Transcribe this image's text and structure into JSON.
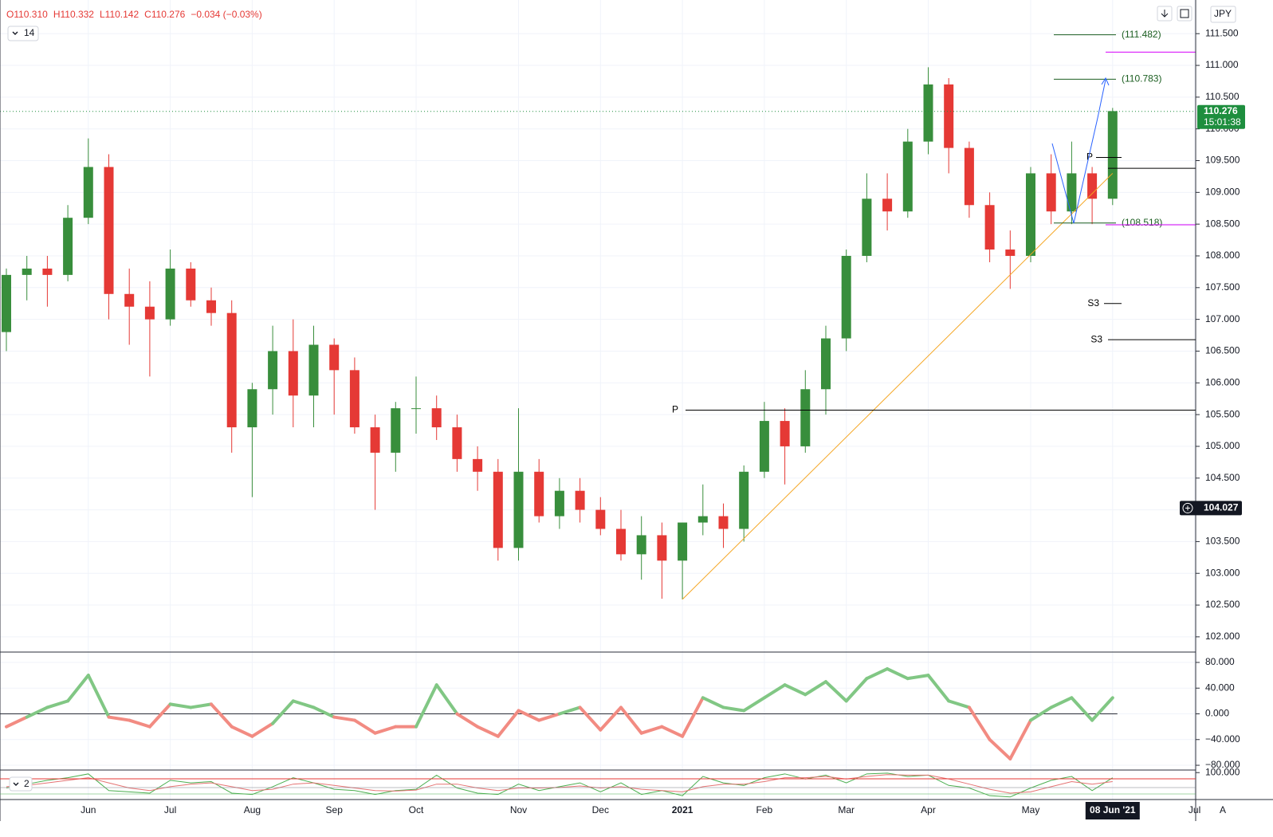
{
  "header": {
    "open": "O110.310",
    "high": "H110.332",
    "low": "L110.142",
    "close": "C110.276",
    "change": "−0.034 (−0.03%)",
    "interval": "14",
    "currency": "JPY",
    "auto": "A",
    "pane_label": "2"
  },
  "chart_data": [
    {
      "type": "candlestick",
      "categories": [
        null,
        null,
        null,
        null,
        "Jun",
        null,
        null,
        null,
        "Jul",
        null,
        null,
        null,
        "Aug",
        null,
        null,
        null,
        "Sep",
        null,
        null,
        null,
        "Oct",
        null,
        null,
        null,
        null,
        "Nov",
        null,
        null,
        null,
        "Dec",
        null,
        null,
        null,
        "2021",
        null,
        null,
        null,
        "Feb",
        null,
        null,
        null,
        "Mar",
        null,
        null,
        null,
        "Apr",
        null,
        null,
        null,
        null,
        "May",
        null,
        null,
        null,
        "08 Jun '21",
        null,
        null,
        null,
        "Jul"
      ],
      "open": [
        106.8,
        107.7,
        107.8,
        107.7,
        108.6,
        109.4,
        107.4,
        107.2,
        107.0,
        107.8,
        107.3,
        107.1,
        105.3,
        105.9,
        106.5,
        105.8,
        106.6,
        106.2,
        105.3,
        104.9,
        105.6,
        105.6,
        105.3,
        104.8,
        104.6,
        103.4,
        104.6,
        103.9,
        104.3,
        104.0,
        103.7,
        103.3,
        103.6,
        103.2,
        103.8,
        103.9,
        103.7,
        104.6,
        105.4,
        105.0,
        105.9,
        106.7,
        108.0,
        108.9,
        108.7,
        109.8,
        110.7,
        109.7,
        108.8,
        108.1,
        108.0,
        109.3,
        108.7,
        109.3,
        108.9,
        null,
        null,
        null,
        null
      ],
      "high": [
        107.8,
        108.0,
        108.0,
        108.8,
        109.85,
        109.6,
        107.8,
        107.6,
        108.1,
        107.9,
        107.5,
        107.3,
        106.0,
        106.9,
        107.0,
        106.9,
        106.7,
        106.4,
        105.5,
        105.7,
        106.1,
        105.8,
        105.5,
        105.0,
        104.8,
        105.6,
        104.8,
        104.5,
        104.5,
        104.2,
        104.0,
        103.9,
        103.8,
        103.8,
        104.4,
        104.1,
        104.7,
        105.7,
        105.6,
        106.2,
        106.9,
        108.1,
        109.3,
        109.3,
        110.0,
        110.97,
        110.8,
        109.8,
        109.0,
        108.4,
        109.4,
        109.6,
        109.8,
        109.4,
        110.33,
        null,
        null,
        null,
        null
      ],
      "low": [
        106.5,
        107.3,
        107.2,
        107.6,
        108.5,
        107.0,
        106.6,
        106.1,
        106.9,
        107.2,
        106.9,
        104.9,
        104.2,
        105.5,
        105.3,
        105.3,
        105.5,
        105.2,
        104.0,
        104.6,
        105.2,
        105.1,
        104.6,
        104.3,
        103.2,
        103.2,
        103.8,
        103.7,
        103.8,
        103.6,
        103.2,
        102.9,
        102.6,
        102.59,
        103.6,
        103.4,
        103.5,
        104.5,
        104.4,
        104.9,
        105.5,
        106.5,
        107.9,
        108.4,
        108.6,
        109.6,
        109.3,
        108.6,
        107.9,
        107.48,
        107.9,
        108.5,
        108.5,
        108.5,
        108.8,
        null,
        null,
        null,
        null
      ],
      "close": [
        107.7,
        107.8,
        107.7,
        108.6,
        109.4,
        107.4,
        107.2,
        107.0,
        107.8,
        107.3,
        107.1,
        105.3,
        105.9,
        106.5,
        105.8,
        106.6,
        106.2,
        105.3,
        104.9,
        105.6,
        105.6,
        105.3,
        104.8,
        104.6,
        103.4,
        104.6,
        103.9,
        104.3,
        104.0,
        103.7,
        103.3,
        103.6,
        103.2,
        103.8,
        103.9,
        103.7,
        104.6,
        105.4,
        105.0,
        105.9,
        106.7,
        108.0,
        108.9,
        108.7,
        109.8,
        110.7,
        109.7,
        108.8,
        108.1,
        108.0,
        109.3,
        108.7,
        109.3,
        108.9,
        110.28,
        null,
        null,
        null,
        null
      ],
      "up_color": "#388e3c",
      "down_color": "#e53935",
      "ylim": [
        101.76,
        112.03
      ],
      "yticks": [
        {
          "value": 102,
          "label": "102.000"
        },
        {
          "value": 102.5,
          "label": "102.500"
        },
        {
          "value": 103,
          "label": "103.000"
        },
        {
          "value": 103.5,
          "label": "103.500"
        },
        {
          "value": 104,
          "label": "104.000"
        },
        {
          "value": 104.5,
          "label": "104.500"
        },
        {
          "value": 105,
          "label": "105.000"
        },
        {
          "value": 105.5,
          "label": "105.500"
        },
        {
          "value": 106,
          "label": "106.000"
        },
        {
          "value": 106.5,
          "label": "106.500"
        },
        {
          "value": 107,
          "label": "107.000"
        },
        {
          "value": 107.5,
          "label": "107.500"
        },
        {
          "value": 108,
          "label": "108.000"
        },
        {
          "value": 108.5,
          "label": "108.500"
        },
        {
          "value": 109,
          "label": "109.000"
        },
        {
          "value": 109.5,
          "label": "109.500"
        },
        {
          "value": 110,
          "label": "110.000"
        },
        {
          "value": 110.5,
          "label": "110.500"
        },
        {
          "value": 111,
          "label": "111.000"
        },
        {
          "value": 111.5,
          "label": "111.500"
        }
      ],
      "grid": true,
      "last_price": {
        "value": 110.276,
        "label": "110.276",
        "countdown": "15:01:38",
        "color": "#1e8e3e"
      },
      "crosshair": {
        "value": 104.027,
        "label": "104.027"
      },
      "levels": [
        {
          "label": "(111.482)",
          "value": 111.482,
          "color": "#1b5e20"
        },
        {
          "label": "(110.783)",
          "value": 110.783,
          "color": "#1b5e20"
        },
        {
          "label": "(108.518)",
          "value": 108.518,
          "color": "#1b5e20"
        },
        {
          "label": "P",
          "value": 105.57,
          "color": "#000000"
        },
        {
          "label": "S3",
          "value": 107.25,
          "color": "#000000"
        },
        {
          "label": "S3",
          "value": 106.68,
          "color": "#000000"
        },
        {
          "label": "P",
          "value": 109.55,
          "color": "#000000"
        },
        {
          "value": 109.38,
          "color": "#000000"
        },
        {
          "value": 111.21,
          "color": "#d500f9"
        },
        {
          "value": 108.49,
          "color": "#d500f9"
        }
      ],
      "trendline": {
        "color": "#f5a623",
        "from": [
          33,
          102.59
        ],
        "to": [
          54,
          109.3
        ]
      }
    },
    {
      "type": "line",
      "values": [
        -20,
        -5,
        10,
        20,
        60,
        -5,
        -10,
        -20,
        15,
        10,
        15,
        -20,
        -35,
        -15,
        20,
        10,
        -5,
        -10,
        -30,
        -20,
        -20,
        45,
        0,
        -20,
        -35,
        5,
        -10,
        0,
        10,
        -25,
        10,
        -30,
        -20,
        -35,
        25,
        10,
        5,
        25,
        45,
        30,
        50,
        20,
        55,
        70,
        55,
        60,
        20,
        10,
        -40,
        -70,
        -10,
        10,
        25,
        -10,
        25,
        null,
        null,
        null,
        null
      ],
      "color_positive": "#81c784",
      "color_negative": "#f28b82",
      "ylim": [
        -87.4,
        96.1
      ],
      "yticks": [
        {
          "value": 80,
          "label": "80.000"
        },
        {
          "value": 40,
          "label": "40.000"
        },
        {
          "value": 0,
          "label": "0.000"
        },
        {
          "value": -40,
          "label": "−40.000"
        },
        {
          "value": -80,
          "label": "−80.000"
        }
      ],
      "zero_line": true
    },
    {
      "type": "line",
      "series": [
        {
          "color": "#4caf50",
          "values": [
            40,
            55,
            70,
            80,
            95,
            30,
            25,
            20,
            70,
            60,
            65,
            20,
            15,
            45,
            80,
            60,
            35,
            30,
            15,
            30,
            35,
            90,
            40,
            20,
            15,
            55,
            30,
            45,
            60,
            25,
            60,
            15,
            30,
            10,
            85,
            60,
            50,
            80,
            95,
            75,
            90,
            60,
            95,
            98,
            85,
            90,
            50,
            40,
            10,
            5,
            40,
            70,
            85,
            30,
            80,
            null,
            null,
            null,
            null
          ]
        },
        {
          "color": "#e57373",
          "values": [
            45,
            50,
            60,
            70,
            80,
            60,
            40,
            30,
            45,
            55,
            60,
            45,
            30,
            35,
            55,
            60,
            50,
            40,
            30,
            28,
            32,
            55,
            55,
            40,
            30,
            40,
            40,
            42,
            48,
            40,
            45,
            35,
            30,
            25,
            45,
            55,
            55,
            65,
            80,
            80,
            85,
            75,
            85,
            92,
            90,
            90,
            75,
            55,
            35,
            20,
            25,
            45,
            65,
            55,
            65,
            null,
            null,
            null,
            null
          ]
        }
      ],
      "ylim": [
        -5,
        110
      ],
      "yticks": [
        {
          "value": 100,
          "label": "100.000"
        }
      ]
    }
  ]
}
